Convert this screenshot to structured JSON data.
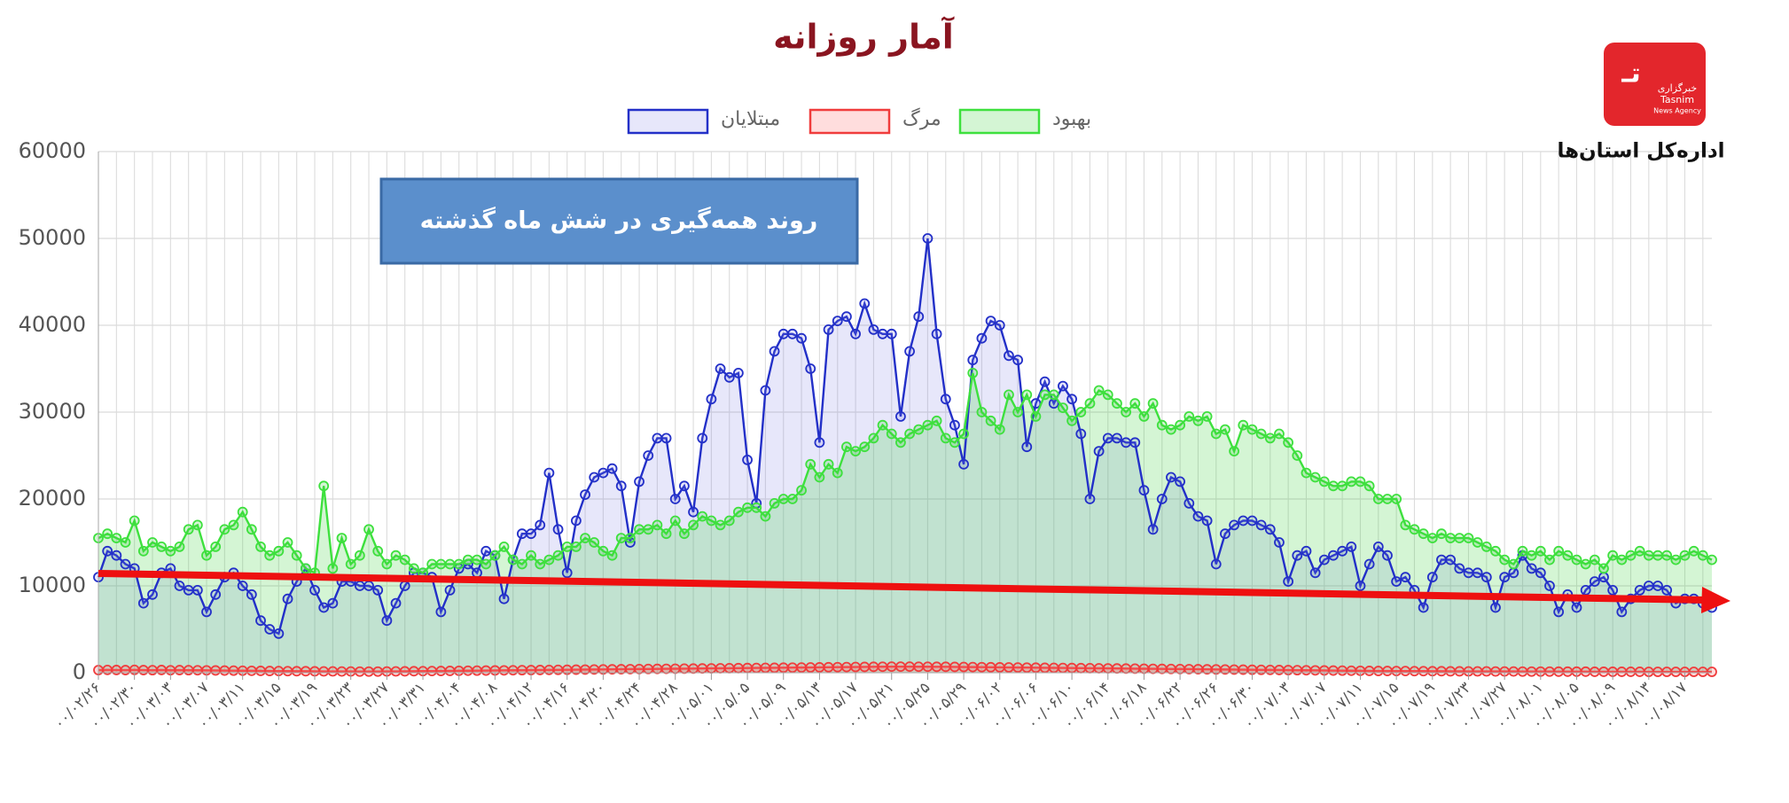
{
  "branding": {
    "agency_fa": "خبرگزاری",
    "agency_en": "Tasnim",
    "agency_sub": "News Agency",
    "office": "اداره‌کل استان‌ها"
  },
  "chart_data": {
    "type": "line",
    "title": "آمار روزانه",
    "annotation": "روند همه‌گیری در شش ماه گذشته",
    "legend": "top",
    "grid": true,
    "fill": true,
    "ylim": [
      0,
      60000
    ],
    "yticks": [
      0,
      10000,
      20000,
      30000,
      40000,
      50000,
      60000
    ],
    "categories": [
      "۰۰/۰۲/۲۶",
      null,
      null,
      null,
      "۰۰/۰۲/۳۰",
      null,
      null,
      null,
      "۰۰/۰۳/۰۳",
      null,
      null,
      null,
      "۰۰/۰۳/۰۷",
      null,
      null,
      null,
      "۰۰/۰۳/۱۱",
      null,
      null,
      null,
      "۰۰/۰۳/۱۵",
      null,
      null,
      null,
      "۰۰/۰۳/۱۹",
      null,
      null,
      null,
      "۰۰/۰۳/۲۳",
      null,
      null,
      null,
      "۰۰/۰۳/۲۷",
      null,
      null,
      null,
      "۰۰/۰۳/۳۱",
      null,
      null,
      null,
      "۰۰/۰۴/۰۴",
      null,
      null,
      null,
      "۰۰/۰۴/۰۸",
      null,
      null,
      null,
      "۰۰/۰۴/۱۲",
      null,
      null,
      null,
      "۰۰/۰۴/۱۶",
      null,
      null,
      null,
      "۰۰/۰۴/۲۰",
      null,
      null,
      null,
      "۰۰/۰۴/۲۴",
      null,
      null,
      null,
      "۰۰/۰۴/۲۸",
      null,
      null,
      null,
      "۰۰/۰۵/۰۱",
      null,
      null,
      null,
      "۰۰/۰۵/۰۵",
      null,
      null,
      null,
      "۰۰/۰۵/۰۹",
      null,
      null,
      null,
      "۰۰/۰۵/۱۳",
      null,
      null,
      null,
      "۰۰/۰۵/۱۷",
      null,
      null,
      null,
      "۰۰/۰۵/۲۱",
      null,
      null,
      null,
      "۰۰/۰۵/۲۵",
      null,
      null,
      null,
      "۰۰/۰۵/۲۹",
      null,
      null,
      null,
      "۰۰/۰۶/۰۲",
      null,
      null,
      null,
      "۰۰/۰۶/۰۶",
      null,
      null,
      null,
      "۰۰/۰۶/۱۰",
      null,
      null,
      null,
      "۰۰/۰۶/۱۴",
      null,
      null,
      null,
      "۰۰/۰۶/۱۸",
      null,
      null,
      null,
      "۰۰/۰۶/۲۲",
      null,
      null,
      null,
      "۰۰/۰۶/۲۶",
      null,
      null,
      null,
      "۰۰/۰۶/۳۰",
      null,
      null,
      null,
      "۰۰/۰۷/۰۳",
      null,
      null,
      null,
      "۰۰/۰۷/۰۷",
      null,
      null,
      null,
      "۰۰/۰۷/۱۱",
      null,
      null,
      null,
      "۰۰/۰۷/۱۵",
      null,
      null,
      null,
      "۰۰/۰۷/۱۹",
      null,
      null,
      null,
      "۰۰/۰۷/۲۳",
      null,
      null,
      null,
      "۰۰/۰۷/۲۷",
      null,
      null,
      null,
      "۰۰/۰۸/۰۱",
      null,
      null,
      null,
      "۰۰/۰۸/۰۵",
      null,
      null,
      null,
      "۰۰/۰۸/۰۹",
      null,
      null,
      null,
      "۰۰/۰۸/۱۳",
      null,
      null,
      null,
      "۰۰/۰۸/۱۷",
      null,
      null,
      null
    ],
    "series": [
      {
        "name": "مبتلایان",
        "color": "#2330c8",
        "fill_color": "rgba(120,120,230,0.18)",
        "values": [
          11000,
          14000,
          13500,
          12500,
          12000,
          8000,
          9000,
          11500,
          12000,
          10000,
          9500,
          9500,
          7000,
          9000,
          11000,
          11500,
          10000,
          9000,
          6000,
          5000,
          4500,
          8500,
          10500,
          12000,
          9500,
          7500,
          8000,
          10500,
          10500,
          10000,
          10000,
          9500,
          6000,
          8000,
          10000,
          11500,
          11500,
          11000,
          7000,
          9500,
          12000,
          12500,
          11500,
          14000,
          13500,
          8500,
          13000,
          16000,
          16000,
          17000,
          23000,
          16500,
          11500,
          17500,
          20500,
          22500,
          23000,
          23500,
          21500,
          15000,
          22000,
          25000,
          27000,
          27000,
          20000,
          21500,
          18500,
          27000,
          31500,
          35000,
          34000,
          34500,
          24500,
          19500,
          32500,
          37000,
          39000,
          39000,
          38500,
          35000,
          26500,
          39500,
          40500,
          41000,
          39000,
          42500,
          39500,
          39000,
          39000,
          29500,
          37000,
          41000,
          50000,
          39000,
          31500,
          28500,
          24000,
          36000,
          38500,
          40500,
          40000,
          36500,
          36000,
          26000,
          31000,
          33500,
          31000,
          33000,
          31500,
          27500,
          20000,
          25500,
          27000,
          27000,
          26500,
          26500,
          21000,
          16500,
          20000,
          22500,
          22000,
          19500,
          18000,
          17500,
          12500,
          16000,
          17000,
          17500,
          17500,
          17000,
          16500,
          15000,
          10500,
          13500,
          14000,
          11500,
          13000,
          13500,
          14000,
          14500,
          10000,
          12500,
          14500,
          13500,
          10500,
          11000,
          9500,
          7500,
          11000,
          13000,
          13000,
          12000,
          11500,
          11500,
          11000,
          7500,
          11000,
          11500,
          13500,
          12000,
          11500,
          10000,
          7000,
          9000,
          7500,
          9500,
          10500,
          11000,
          9500,
          7000,
          8500,
          9500,
          10000,
          10000,
          9500,
          8000,
          8500,
          8500,
          8000,
          7500
        ]
      },
      {
        "name": "مرگ",
        "color": "#f03c3c",
        "fill_color": "rgba(255,120,120,0.25)",
        "values": [
          300,
          320,
          310,
          300,
          330,
          300,
          290,
          310,
          280,
          300,
          290,
          280,
          270,
          260,
          250,
          240,
          230,
          220,
          210,
          200,
          190,
          180,
          170,
          170,
          160,
          150,
          150,
          140,
          140,
          130,
          130,
          130,
          140,
          150,
          160,
          170,
          180,
          190,
          200,
          210,
          220,
          230,
          240,
          250,
          260,
          270,
          280,
          290,
          300,
          310,
          320,
          330,
          340,
          350,
          360,
          370,
          380,
          390,
          400,
          410,
          420,
          430,
          440,
          450,
          460,
          470,
          480,
          490,
          500,
          510,
          520,
          530,
          540,
          550,
          560,
          570,
          580,
          590,
          600,
          610,
          620,
          630,
          640,
          650,
          660,
          670,
          680,
          690,
          700,
          700,
          700,
          690,
          690,
          680,
          680,
          670,
          660,
          650,
          640,
          630,
          620,
          610,
          600,
          590,
          580,
          570,
          560,
          550,
          540,
          530,
          520,
          510,
          500,
          490,
          480,
          470,
          460,
          450,
          440,
          430,
          420,
          410,
          400,
          390,
          380,
          370,
          360,
          350,
          340,
          330,
          320,
          310,
          300,
          290,
          280,
          270,
          260,
          250,
          240,
          230,
          220,
          210,
          200,
          200,
          190,
          190,
          180,
          180,
          170,
          170,
          160,
          160,
          150,
          150,
          150,
          140,
          140,
          140,
          130,
          130,
          130,
          130,
          120,
          120,
          120,
          120,
          110,
          110,
          110,
          110,
          110,
          110,
          100,
          100,
          100,
          100,
          100,
          100,
          100,
          100
        ]
      },
      {
        "name": "بهبود",
        "color": "#3ee03e",
        "fill_color": "rgba(60,210,60,0.22)",
        "values": [
          15500,
          16000,
          15500,
          15000,
          17500,
          14000,
          15000,
          14500,
          14000,
          14500,
          16500,
          17000,
          13500,
          14500,
          16500,
          17000,
          18500,
          16500,
          14500,
          13500,
          14000,
          15000,
          13500,
          12000,
          11500,
          21500,
          12000,
          15500,
          12500,
          13500,
          16500,
          14000,
          12500,
          13500,
          13000,
          12000,
          11500,
          12500,
          12500,
          12500,
          12500,
          13000,
          13000,
          12500,
          13500,
          14500,
          13000,
          12500,
          13500,
          12500,
          13000,
          13500,
          14500,
          14500,
          15500,
          15000,
          14000,
          13500,
          15500,
          15500,
          16500,
          16500,
          17000,
          16000,
          17500,
          16000,
          17000,
          18000,
          17500,
          17000,
          17500,
          18500,
          19000,
          19000,
          18000,
          19500,
          20000,
          20000,
          21000,
          24000,
          22500,
          24000,
          23000,
          26000,
          25500,
          26000,
          27000,
          28500,
          27500,
          26500,
          27500,
          28000,
          28500,
          29000,
          27000,
          26500,
          27500,
          34500,
          30000,
          29000,
          28000,
          32000,
          30000,
          32000,
          29500,
          32000,
          32000,
          30500,
          29000,
          30000,
          31000,
          32500,
          32000,
          31000,
          30000,
          31000,
          29500,
          31000,
          28500,
          28000,
          28500,
          29500,
          29000,
          29500,
          27500,
          28000,
          25500,
          28500,
          28000,
          27500,
          27000,
          27500,
          26500,
          25000,
          23000,
          22500,
          22000,
          21500,
          21500,
          22000,
          22000,
          21500,
          20000,
          20000,
          20000,
          17000,
          16500,
          16000,
          15500,
          16000,
          15500,
          15500,
          15500,
          15000,
          14500,
          14000,
          13000,
          12500,
          14000,
          13500,
          14000,
          13000,
          14000,
          13500,
          13000,
          12500,
          13000,
          12000,
          13500,
          13000,
          13500,
          14000,
          13500,
          13500,
          13500,
          13000,
          13500,
          14000,
          13500,
          13000
        ]
      }
    ]
  }
}
